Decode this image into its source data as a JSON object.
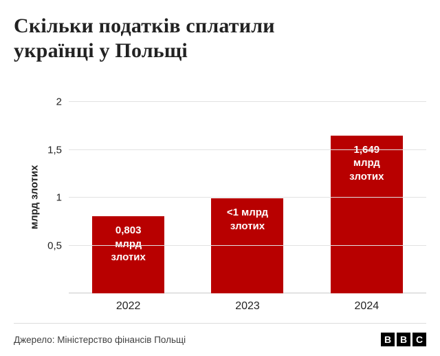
{
  "header": {
    "title": "Скільки податків сплатили українці у Польщі"
  },
  "chart_data": {
    "type": "bar",
    "title": "Скільки податків сплатили українці у Польщі",
    "categories": [
      "2022",
      "2023",
      "2024"
    ],
    "values": [
      0.803,
      0.99,
      1.649
    ],
    "bar_labels": [
      "0,803 млрд злотих",
      "<1 млрд злотих",
      "1,649 млрд злотих"
    ],
    "xlabel": "",
    "ylabel": "млрд злотих",
    "ylim": [
      0,
      2
    ],
    "yticks": [
      0.5,
      1,
      1.5,
      2
    ],
    "ytick_labels": [
      "0,5",
      "1",
      "1,5",
      "2"
    ],
    "grid": true,
    "legend": false,
    "bar_color": "#b80000",
    "bar_label_color": "#ffffff"
  },
  "footer": {
    "source": "Джерело: Міністерство фінансів Польщі",
    "logo": {
      "letters": [
        "B",
        "B",
        "C"
      ],
      "color": "#000000"
    }
  }
}
